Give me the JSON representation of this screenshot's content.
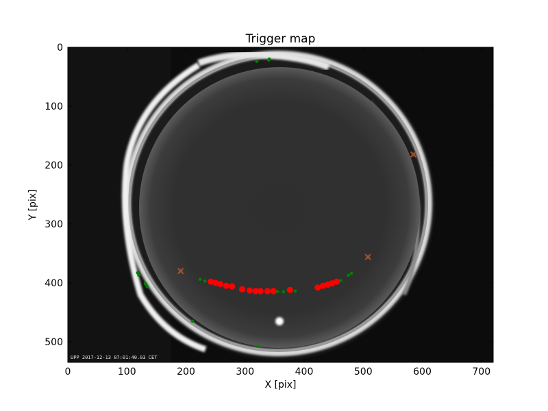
{
  "chart_data": {
    "type": "scatter",
    "title": "Trigger map",
    "xlabel": "X [pix]",
    "ylabel": "Y [pix]",
    "xlim": [
      0,
      720
    ],
    "ylim": [
      535,
      0
    ],
    "y_inverted": true,
    "xticks": [
      0,
      100,
      200,
      300,
      400,
      500,
      600,
      700
    ],
    "yticks": [
      0,
      100,
      200,
      300,
      400,
      500
    ],
    "background": "all-sky camera image",
    "timestamp": "UPP 2017-12-13 07:01:40.03 CET",
    "grid": false,
    "series": [
      {
        "marker": "large circle",
        "color": "#ff0000",
        "points": [
          [
            242,
            398
          ],
          [
            250,
            400
          ],
          [
            258,
            402
          ],
          [
            268,
            405
          ],
          [
            278,
            406
          ],
          [
            295,
            411
          ],
          [
            308,
            413
          ],
          [
            318,
            414
          ],
          [
            326,
            414
          ],
          [
            338,
            414
          ],
          [
            348,
            414
          ],
          [
            376,
            412
          ],
          [
            423,
            408
          ],
          [
            432,
            405
          ],
          [
            440,
            403
          ],
          [
            447,
            401
          ],
          [
            455,
            398
          ]
        ]
      },
      {
        "marker": "small circle",
        "color": "#008000",
        "points": [
          [
            320,
            24
          ],
          [
            340,
            22
          ],
          [
            341,
            20
          ],
          [
            118,
            383
          ],
          [
            120,
            387
          ],
          [
            131,
            401
          ],
          [
            133,
            404
          ],
          [
            135,
            407
          ],
          [
            224,
            394
          ],
          [
            232,
            397
          ],
          [
            355,
            415
          ],
          [
            365,
            415
          ],
          [
            385,
            414
          ],
          [
            462,
            396
          ],
          [
            475,
            387
          ],
          [
            480,
            384
          ],
          [
            211,
            465
          ],
          [
            321,
            508
          ]
        ]
      },
      {
        "marker": "x",
        "color": "#a0522d",
        "points": [
          [
            585,
            182
          ],
          [
            508,
            356
          ],
          [
            191,
            380
          ]
        ]
      }
    ]
  }
}
